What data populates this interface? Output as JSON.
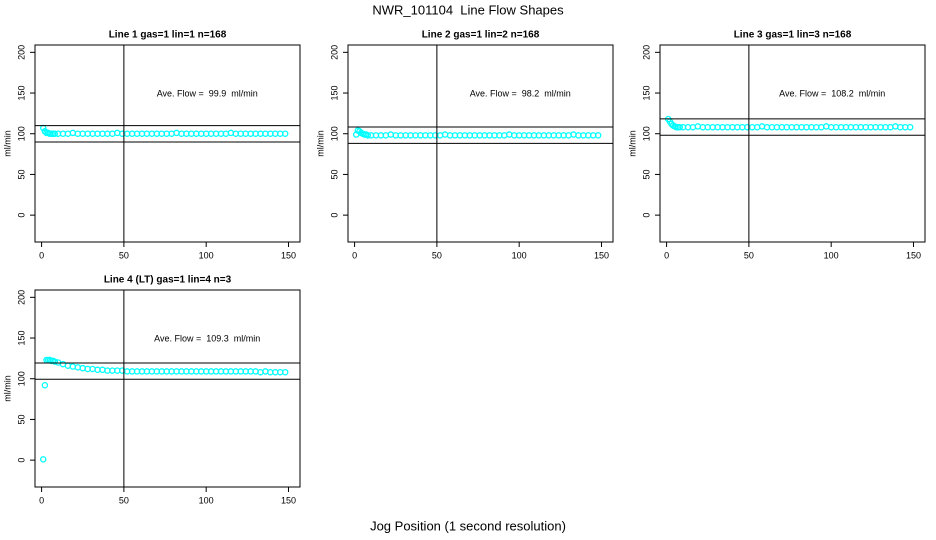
{
  "title": "NWR_101104  Line Flow Shapes",
  "xlabel": "Jog Position (1 second resolution)",
  "chart_data": [
    {
      "type": "scatter",
      "title": "Line 1 gas=1 lin=1 n=168",
      "ylabel": "ml/min",
      "annotation": "Ave. Flow =  99.9  ml/min",
      "color": "#00ffff",
      "xlim": [
        -4,
        157
      ],
      "ylim": [
        -33,
        209
      ],
      "xticks": [
        0,
        50,
        100,
        150
      ],
      "yticks": [
        0,
        50,
        100,
        150,
        200
      ],
      "hlines": [
        109.9,
        89.9
      ],
      "vlines": [
        50
      ],
      "x": [
        1,
        2,
        3,
        4,
        5,
        6,
        7,
        8,
        10,
        13,
        16,
        19,
        22,
        25,
        28,
        31,
        34,
        37,
        40,
        43,
        46,
        49,
        52,
        55,
        58,
        61,
        64,
        67,
        70,
        73,
        76,
        79,
        82,
        85,
        88,
        91,
        94,
        97,
        100,
        103,
        106,
        109,
        112,
        115,
        118,
        121,
        124,
        127,
        130,
        133,
        136,
        139,
        142,
        145,
        148
      ],
      "values": [
        107,
        103,
        101,
        101,
        100,
        100,
        100,
        100,
        100,
        100,
        100,
        101,
        100,
        100,
        100,
        100,
        100,
        100,
        100,
        100,
        101,
        100,
        100,
        100,
        100,
        100,
        100,
        100,
        100,
        100,
        100,
        100,
        101,
        100,
        100,
        100,
        100,
        100,
        100,
        100,
        100,
        100,
        100,
        101,
        100,
        100,
        100,
        100,
        100,
        100,
        100,
        100,
        100,
        100,
        100
      ]
    },
    {
      "type": "scatter",
      "title": "Line 2 gas=1 lin=2 n=168",
      "ylabel": "ml/min",
      "annotation": "Ave. Flow =  98.2  ml/min",
      "color": "#00ffff",
      "xlim": [
        -4,
        157
      ],
      "ylim": [
        -33,
        209
      ],
      "xticks": [
        0,
        50,
        100,
        150
      ],
      "yticks": [
        0,
        50,
        100,
        150,
        200
      ],
      "hlines": [
        108.2,
        88.2
      ],
      "vlines": [
        50
      ],
      "x": [
        1,
        2,
        3,
        4,
        5,
        6,
        7,
        8,
        10,
        13,
        16,
        19,
        22,
        25,
        28,
        31,
        34,
        37,
        40,
        43,
        46,
        49,
        52,
        55,
        58,
        61,
        64,
        67,
        70,
        73,
        76,
        79,
        82,
        85,
        88,
        91,
        94,
        97,
        100,
        103,
        106,
        109,
        112,
        115,
        118,
        121,
        124,
        127,
        130,
        133,
        136,
        139,
        142,
        145,
        148
      ],
      "values": [
        99,
        104,
        103,
        101,
        100,
        99,
        99,
        98,
        98,
        98,
        98,
        98,
        99,
        98,
        98,
        98,
        98,
        98,
        98,
        98,
        98,
        98,
        98,
        99,
        98,
        98,
        98,
        98,
        98,
        98,
        98,
        98,
        98,
        98,
        98,
        98,
        99,
        98,
        98,
        98,
        98,
        98,
        98,
        98,
        98,
        98,
        98,
        98,
        98,
        99,
        98,
        98,
        98,
        98,
        98
      ]
    },
    {
      "type": "scatter",
      "title": "Line 3 gas=1 lin=3 n=168",
      "ylabel": "ml/min",
      "annotation": "Ave. Flow =  108.2  ml/min",
      "color": "#00ffff",
      "xlim": [
        -4,
        157
      ],
      "ylim": [
        -33,
        209
      ],
      "xticks": [
        0,
        50,
        100,
        150
      ],
      "yticks": [
        0,
        50,
        100,
        150,
        200
      ],
      "hlines": [
        118.2,
        98.2
      ],
      "vlines": [
        50
      ],
      "x": [
        1,
        2,
        3,
        4,
        5,
        6,
        7,
        8,
        10,
        13,
        16,
        19,
        22,
        25,
        28,
        31,
        34,
        37,
        40,
        43,
        46,
        49,
        52,
        55,
        58,
        61,
        64,
        67,
        70,
        73,
        76,
        79,
        82,
        85,
        88,
        91,
        94,
        97,
        100,
        103,
        106,
        109,
        112,
        115,
        118,
        121,
        124,
        127,
        130,
        133,
        136,
        139,
        142,
        145,
        148
      ],
      "values": [
        118,
        115,
        112,
        110,
        109,
        108,
        108,
        108,
        108,
        108,
        108,
        109,
        108,
        108,
        108,
        108,
        108,
        108,
        108,
        108,
        108,
        108,
        108,
        108,
        109,
        108,
        108,
        108,
        108,
        108,
        108,
        108,
        108,
        108,
        108,
        108,
        108,
        109,
        108,
        108,
        108,
        108,
        108,
        108,
        108,
        108,
        108,
        108,
        108,
        108,
        108,
        109,
        108,
        108,
        108
      ]
    },
    {
      "type": "scatter",
      "title": "Line 4 (LT) gas=1 lin=4 n=3",
      "ylabel": "ml/min",
      "annotation": "Ave. Flow =  109.3  ml/min",
      "color": "#00ffff",
      "xlim": [
        -4,
        157
      ],
      "ylim": [
        -33,
        209
      ],
      "xticks": [
        0,
        50,
        100,
        150
      ],
      "yticks": [
        0,
        50,
        100,
        150,
        200
      ],
      "hlines": [
        119.3,
        99.3
      ],
      "vlines": [
        50
      ],
      "x": [
        1,
        2,
        3,
        4,
        5,
        6,
        7,
        8,
        10,
        13,
        16,
        19,
        22,
        25,
        28,
        31,
        34,
        37,
        40,
        43,
        46,
        49,
        52,
        55,
        58,
        61,
        64,
        67,
        70,
        73,
        76,
        79,
        82,
        85,
        88,
        91,
        94,
        97,
        100,
        103,
        106,
        109,
        112,
        115,
        118,
        121,
        124,
        127,
        130,
        133,
        136,
        139,
        142,
        145,
        148
      ],
      "values": [
        1,
        92,
        123,
        123,
        123,
        122,
        122,
        121,
        120,
        118,
        116,
        115,
        114,
        113,
        112,
        112,
        111,
        111,
        110,
        110,
        110,
        110,
        109,
        109,
        109,
        109,
        109,
        109,
        109,
        109,
        109,
        109,
        109,
        109,
        109,
        109,
        109,
        109,
        109,
        109,
        109,
        109,
        109,
        109,
        109,
        109,
        109,
        109,
        109,
        108,
        109,
        108,
        108,
        108,
        108
      ]
    }
  ]
}
